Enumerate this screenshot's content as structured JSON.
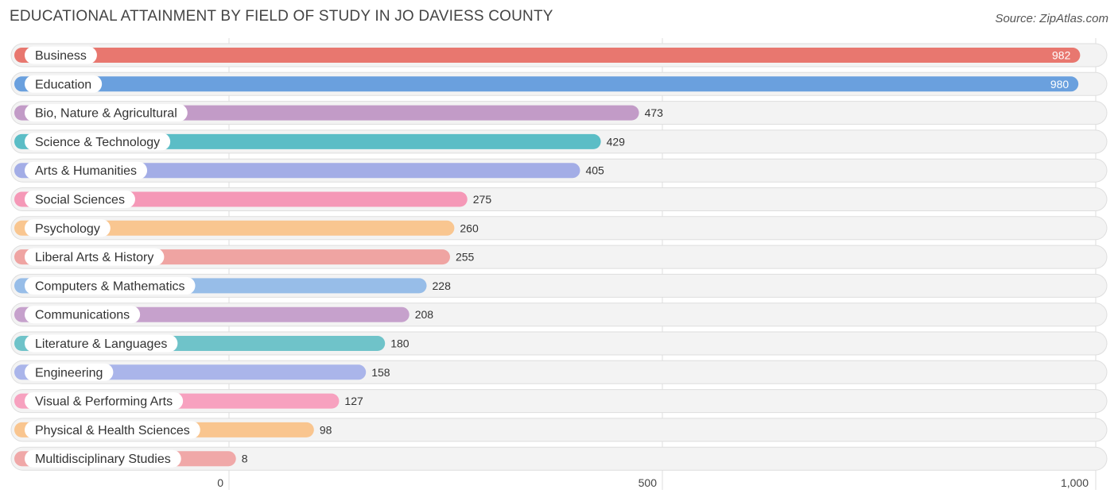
{
  "title": "EDUCATIONAL ATTAINMENT BY FIELD OF STUDY IN JO DAVIESS COUNTY",
  "source": "Source: ZipAtlas.com",
  "chart_data": {
    "type": "bar",
    "orientation": "horizontal",
    "title": "EDUCATIONAL ATTAINMENT BY FIELD OF STUDY IN JO DAVIESS COUNTY",
    "categories": [
      "Business",
      "Education",
      "Bio, Nature & Agricultural",
      "Science & Technology",
      "Arts & Humanities",
      "Social Sciences",
      "Psychology",
      "Liberal Arts & History",
      "Computers & Mathematics",
      "Communications",
      "Literature & Languages",
      "Engineering",
      "Visual & Performing Arts",
      "Physical & Health Sciences",
      "Multidisciplinary Studies"
    ],
    "values": [
      982,
      980,
      473,
      429,
      405,
      275,
      260,
      255,
      228,
      208,
      180,
      158,
      127,
      98,
      8
    ],
    "value_labels": [
      "982",
      "980",
      "473",
      "429",
      "405",
      "275",
      "260",
      "255",
      "228",
      "208",
      "180",
      "158",
      "127",
      "98",
      "8"
    ],
    "colors": [
      "#e8776f",
      "#6aa0de",
      "#c29bc7",
      "#5bbdc6",
      "#a3ade6",
      "#f598b7",
      "#f9c690",
      "#efa4a2",
      "#97bde8",
      "#c6a1cc",
      "#6fc3c9",
      "#aab5ea",
      "#f7a1bf",
      "#f9c58f",
      "#f0a8a8"
    ],
    "xlim": [
      0,
      1000
    ],
    "xticks": [
      0,
      500,
      1000
    ],
    "xtick_labels": [
      "0",
      "500",
      "1,000"
    ],
    "grid": true
  }
}
